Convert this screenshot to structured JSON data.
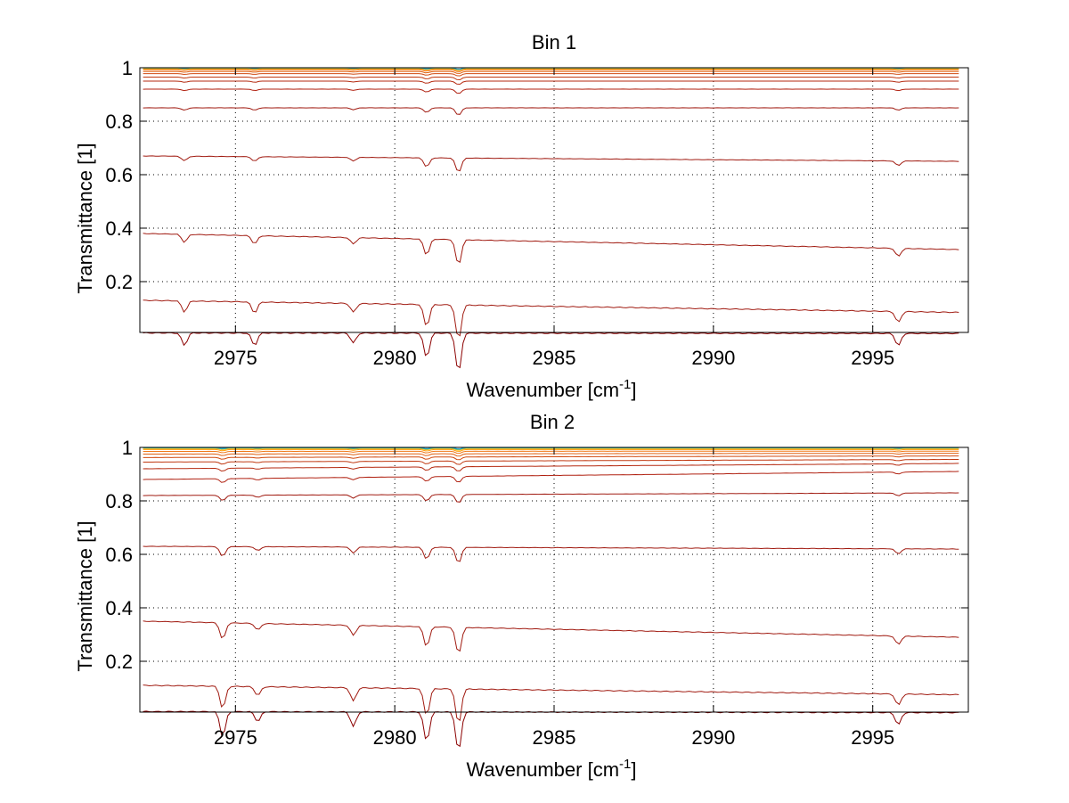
{
  "chart_data": [
    {
      "type": "line",
      "title": "Bin 1",
      "xlabel": "Wavenumber [cm",
      "xlabel_sup": "-1",
      "xlabel_end": "]",
      "ylabel": "Transmittance [1]",
      "xlim": [
        2972,
        2998
      ],
      "ylim": [
        0.01,
        1.0
      ],
      "grid": true,
      "xticks": [
        2975,
        2980,
        2985,
        2990,
        2995
      ],
      "xtick_labels": [
        "2975",
        "2980",
        "2985",
        "2990",
        "2995"
      ],
      "yticks": [
        0.2,
        0.4,
        0.6,
        0.8,
        1.0
      ],
      "ytick_labels": [
        "0.2",
        "0.4",
        "0.6",
        "0.8",
        "1"
      ],
      "x_range": [
        2972.1,
        2997.7
      ],
      "dips": [
        [
          2973.4,
          0.5
        ],
        [
          2975.6,
          0.5
        ],
        [
          2978.7,
          0.4
        ],
        [
          2981.0,
          1.0
        ],
        [
          2982.0,
          1.6
        ],
        [
          2995.8,
          0.5
        ]
      ],
      "series": [
        {
          "start": 0.008,
          "end": 0.006,
          "color": "#8b0000"
        },
        {
          "start": 0.13,
          "end": 0.085,
          "color": "#a01a10"
        },
        {
          "start": 0.38,
          "end": 0.32,
          "color": "#a01a10"
        },
        {
          "start": 0.67,
          "end": 0.65,
          "color": "#a01a10"
        },
        {
          "start": 0.85,
          "end": 0.85,
          "color": "#a01a10"
        },
        {
          "start": 0.92,
          "end": 0.92,
          "color": "#b02010"
        },
        {
          "start": 0.95,
          "end": 0.95,
          "color": "#b52a10"
        },
        {
          "start": 0.965,
          "end": 0.965,
          "color": "#c03810"
        },
        {
          "start": 0.978,
          "end": 0.978,
          "color": "#d04a10"
        },
        {
          "start": 0.986,
          "end": 0.986,
          "color": "#e06010"
        },
        {
          "start": 0.992,
          "end": 0.992,
          "color": "#f07818"
        },
        {
          "start": 0.996,
          "end": 0.996,
          "color": "#ff9a00"
        },
        {
          "start": 0.998,
          "end": 0.998,
          "color": "#ffc000"
        },
        {
          "start": 0.999,
          "end": 0.999,
          "color": "#40c0a0"
        },
        {
          "start": 1.0,
          "end": 1.0,
          "color": "#20a0d0"
        }
      ]
    },
    {
      "type": "line",
      "title": "Bin 2",
      "xlabel": "Wavenumber [cm",
      "xlabel_sup": "-1",
      "xlabel_end": "]",
      "ylabel": "Transmittance [1]",
      "xlim": [
        2972,
        2998
      ],
      "ylim": [
        0.01,
        1.0
      ],
      "grid": true,
      "xticks": [
        2975,
        2980,
        2985,
        2990,
        2995
      ],
      "xtick_labels": [
        "2975",
        "2980",
        "2985",
        "2990",
        "2995"
      ],
      "yticks": [
        0.2,
        0.4,
        0.6,
        0.8,
        1.0
      ],
      "ytick_labels": [
        "0.2",
        "0.4",
        "0.6",
        "0.8",
        "1"
      ],
      "x_range": [
        2972.1,
        2997.7
      ],
      "dips": [
        [
          2974.6,
          1.0
        ],
        [
          2975.7,
          0.4
        ],
        [
          2978.7,
          0.6
        ],
        [
          2981.0,
          1.2
        ],
        [
          2982.0,
          1.6
        ],
        [
          2995.8,
          0.5
        ]
      ],
      "series": [
        {
          "start": 0.012,
          "end": 0.008,
          "color": "#8b0000"
        },
        {
          "start": 0.11,
          "end": 0.075,
          "color": "#a01a10"
        },
        {
          "start": 0.35,
          "end": 0.29,
          "color": "#a01a10"
        },
        {
          "start": 0.63,
          "end": 0.62,
          "color": "#a01a10"
        },
        {
          "start": 0.82,
          "end": 0.83,
          "color": "#a01a10"
        },
        {
          "start": 0.88,
          "end": 0.91,
          "color": "#b02010"
        },
        {
          "start": 0.92,
          "end": 0.94,
          "color": "#b52a10"
        },
        {
          "start": 0.945,
          "end": 0.955,
          "color": "#c03810"
        },
        {
          "start": 0.962,
          "end": 0.968,
          "color": "#d04a10"
        },
        {
          "start": 0.975,
          "end": 0.978,
          "color": "#e06010"
        },
        {
          "start": 0.985,
          "end": 0.986,
          "color": "#f07818"
        },
        {
          "start": 0.992,
          "end": 0.992,
          "color": "#ff9a00"
        },
        {
          "start": 0.996,
          "end": 0.996,
          "color": "#ffc000"
        },
        {
          "start": 0.998,
          "end": 0.998,
          "color": "#40c0a0"
        },
        {
          "start": 1.0,
          "end": 1.0,
          "color": "#20a0d0"
        }
      ]
    }
  ]
}
